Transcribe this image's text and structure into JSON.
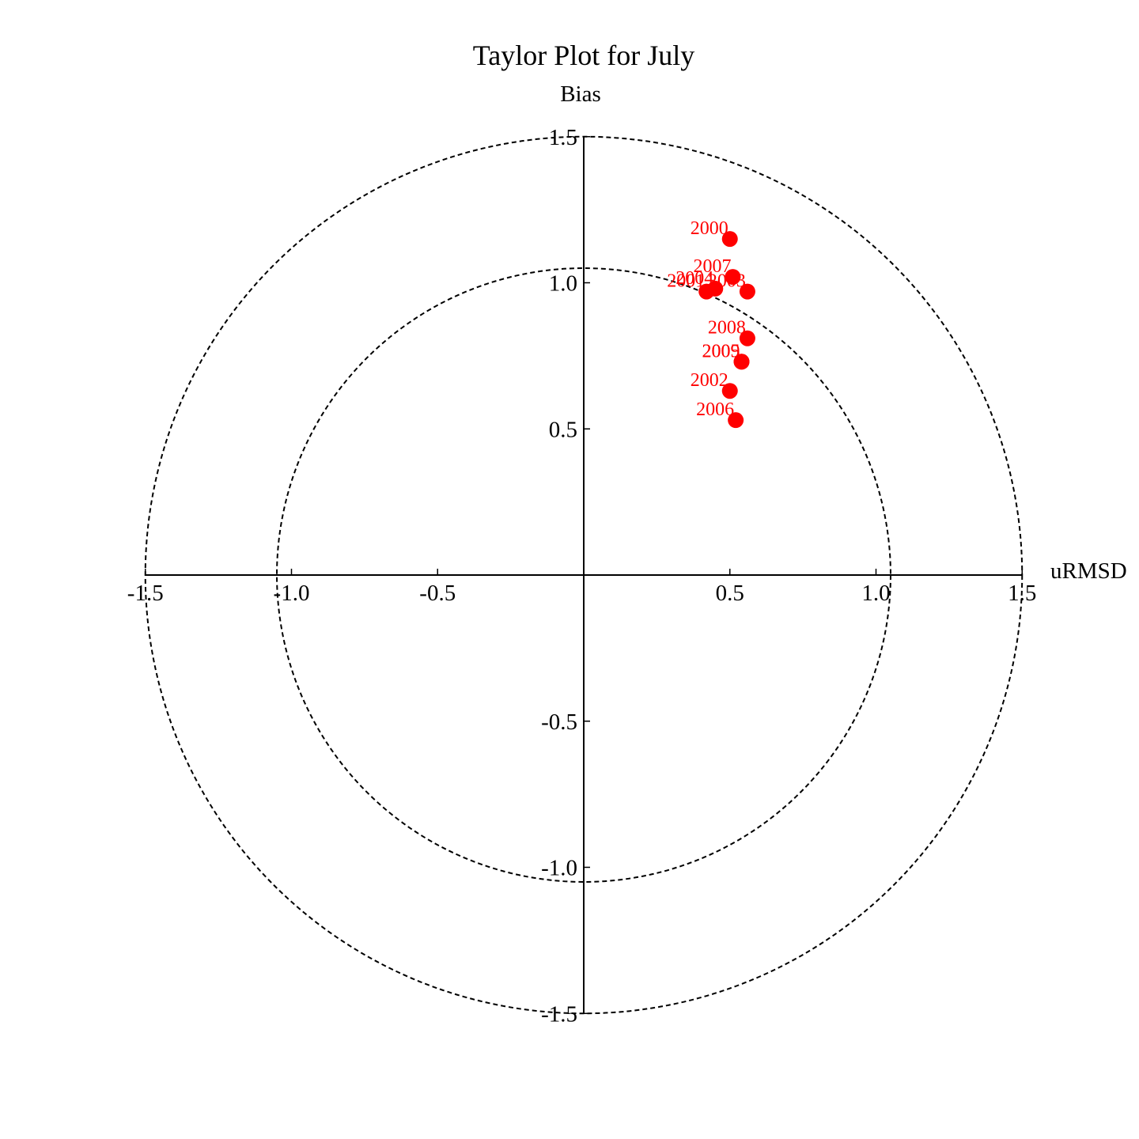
{
  "chart_data": {
    "type": "scatter",
    "title": "Taylor Plot for July",
    "xlabel": "uRMSD",
    "ylabel": "Bias",
    "xlim": [
      -1.5,
      1.5
    ],
    "ylim": [
      -1.5,
      1.5
    ],
    "xticks": [
      "-1.5",
      "-1.0",
      "-0.5",
      "0.5",
      "1.0",
      "1.5"
    ],
    "yticks": [
      "-1.5",
      "-1.0",
      "-0.5",
      "0.5",
      "1.0",
      "1.5"
    ],
    "xtick_values": [
      -1.5,
      -1.0,
      -0.5,
      0.5,
      1.0,
      1.5
    ],
    "ytick_values": [
      -1.5,
      -1.0,
      -0.5,
      0.5,
      1.0,
      1.5
    ],
    "reference_circles": [
      1.05,
      1.5
    ],
    "grid": false,
    "marker_color": "#ff0000",
    "points": [
      {
        "label": "2000",
        "x": 0.5,
        "y": 1.15
      },
      {
        "label": "2007",
        "x": 0.51,
        "y": 1.02
      },
      {
        "label": "2003",
        "x": 0.56,
        "y": 0.97
      },
      {
        "label": "2004",
        "x": 0.45,
        "y": 0.98
      },
      {
        "label": "2001",
        "x": 0.42,
        "y": 0.97
      },
      {
        "label": "2008",
        "x": 0.56,
        "y": 0.81
      },
      {
        "label": "2005",
        "x": 0.54,
        "y": 0.73
      },
      {
        "label": "2009",
        "x": 0.54,
        "y": 0.73
      },
      {
        "label": "2002",
        "x": 0.5,
        "y": 0.63
      },
      {
        "label": "2006",
        "x": 0.52,
        "y": 0.53
      }
    ]
  }
}
